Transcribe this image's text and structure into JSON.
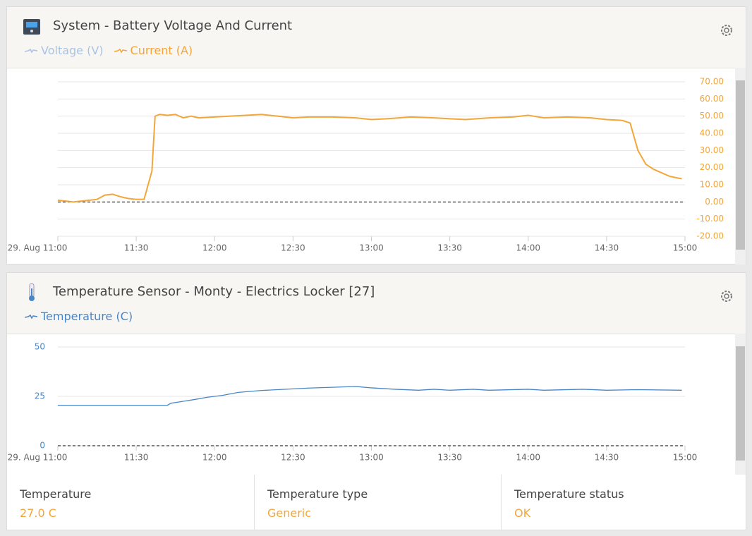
{
  "chart_data": [
    {
      "type": "line",
      "title": "System - Battery Voltage And Current",
      "yaxis_position": "right",
      "grid": true,
      "x": [
        11.0,
        11.05,
        11.1,
        11.15,
        11.2,
        11.25,
        11.3,
        11.35,
        11.4,
        11.45,
        11.5,
        11.55,
        11.6,
        11.62,
        11.65,
        11.7,
        11.75,
        11.8,
        11.85,
        11.9,
        12.0,
        12.1,
        12.2,
        12.3,
        12.4,
        12.5,
        12.6,
        12.75,
        12.9,
        13.0,
        13.1,
        13.25,
        13.4,
        13.5,
        13.6,
        13.75,
        13.9,
        14.0,
        14.1,
        14.25,
        14.4,
        14.5,
        14.6,
        14.65,
        14.7,
        14.75,
        14.8,
        14.85,
        14.9,
        14.95,
        14.98
      ],
      "series": [
        {
          "name": "Voltage (V)",
          "color": "#a9c4e4",
          "visible": false
        },
        {
          "name": "Current (A)",
          "color": "#f3a63a",
          "visible": true,
          "values": [
            1,
            0.5,
            0,
            0.5,
            1,
            1.5,
            4,
            4.5,
            3,
            2,
            1.5,
            1.5,
            18,
            50,
            51,
            50.5,
            51,
            49,
            50,
            49,
            49.5,
            50,
            50.5,
            51,
            50,
            49,
            49.5,
            49.5,
            49,
            48,
            48.5,
            49.5,
            49,
            48.5,
            48,
            49,
            49.5,
            50.5,
            49,
            49.5,
            49,
            48,
            47.5,
            46,
            30,
            22,
            19,
            17,
            15,
            14,
            13.5
          ]
        }
      ],
      "xlim": [
        11,
        15
      ],
      "xticks": [
        {
          "value": 11,
          "label": "29. Aug 11:00"
        },
        {
          "value": 11.5,
          "label": "11:30"
        },
        {
          "value": 12,
          "label": "12:00"
        },
        {
          "value": 12.5,
          "label": "12:30"
        },
        {
          "value": 13,
          "label": "13:00"
        },
        {
          "value": 13.5,
          "label": "13:30"
        },
        {
          "value": 14,
          "label": "14:00"
        },
        {
          "value": 14.5,
          "label": "14:30"
        },
        {
          "value": 15,
          "label": "15:00"
        }
      ],
      "ylim": [
        -20,
        70
      ],
      "yticks": [
        {
          "value": -20,
          "label": "-20.00"
        },
        {
          "value": -10,
          "label": "-10.00"
        },
        {
          "value": 0,
          "label": "0.00"
        },
        {
          "value": 10,
          "label": "10.00"
        },
        {
          "value": 20,
          "label": "20.00"
        },
        {
          "value": 30,
          "label": "30.00"
        },
        {
          "value": 40,
          "label": "40.00"
        },
        {
          "value": 50,
          "label": "50.00"
        },
        {
          "value": 60,
          "label": "60.00"
        },
        {
          "value": 70,
          "label": "70.00"
        }
      ]
    },
    {
      "type": "line",
      "title": "Temperature Sensor - Monty - Electrics Locker [27]",
      "yaxis_position": "left",
      "grid": true,
      "x": [
        11.0,
        11.7,
        11.72,
        11.8,
        11.88,
        11.95,
        12.05,
        12.15,
        12.3,
        12.6,
        12.9,
        13.0,
        13.15,
        13.3,
        13.4,
        13.5,
        13.65,
        13.75,
        14.0,
        14.1,
        14.35,
        14.5,
        14.7,
        14.98
      ],
      "series": [
        {
          "name": "Temperature (C)",
          "color": "#4a86c5",
          "visible": true,
          "values": [
            20.5,
            20.5,
            21.5,
            22.5,
            23.5,
            24.5,
            25.5,
            27,
            28,
            29.2,
            30,
            29.3,
            28.6,
            28.1,
            28.6,
            28.1,
            28.6,
            28.1,
            28.6,
            28.1,
            28.6,
            28.1,
            28.4,
            28.1
          ]
        }
      ],
      "xlim": [
        11,
        15
      ],
      "xticks": [
        {
          "value": 11,
          "label": "29. Aug 11:00"
        },
        {
          "value": 11.5,
          "label": "11:30"
        },
        {
          "value": 12,
          "label": "12:00"
        },
        {
          "value": 12.5,
          "label": "12:30"
        },
        {
          "value": 13,
          "label": "13:00"
        },
        {
          "value": 13.5,
          "label": "13:30"
        },
        {
          "value": 14,
          "label": "14:00"
        },
        {
          "value": 14.5,
          "label": "14:30"
        },
        {
          "value": 15,
          "label": "15:00"
        }
      ],
      "ylim": [
        0,
        50
      ],
      "yticks": [
        0,
        25,
        50
      ]
    }
  ],
  "stats": [
    {
      "label": "Temperature",
      "value": "27.0 C"
    },
    {
      "label": "Temperature type",
      "value": "Generic"
    },
    {
      "label": "Temperature status",
      "value": "OK"
    }
  ]
}
